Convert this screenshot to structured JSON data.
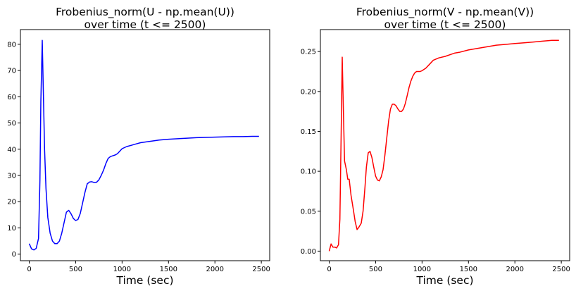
{
  "chart_data": [
    {
      "type": "line",
      "title_lines": [
        "Frobenius_norm(U - np.mean(U))",
        "over time (t <= 2500)"
      ],
      "xlabel": "Time (sec)",
      "ylabel": "",
      "xlim": [
        -95,
        2590
      ],
      "ylim": [
        -2.5,
        85.6
      ],
      "xticks": [
        0,
        500,
        1000,
        1500,
        2000,
        2500
      ],
      "yticks": [
        0,
        10,
        20,
        30,
        40,
        50,
        60,
        70,
        80
      ],
      "ytick_labels": [
        "0",
        "10",
        "20",
        "30",
        "40",
        "50",
        "60",
        "70",
        "80"
      ],
      "grid": false,
      "series": [
        {
          "color": "#0000ff",
          "x": [
            0,
            25,
            50,
            75,
            100,
            115,
            125,
            140,
            150,
            165,
            180,
            200,
            225,
            250,
            275,
            300,
            325,
            350,
            375,
            400,
            425,
            450,
            475,
            500,
            525,
            550,
            575,
            600,
            625,
            650,
            675,
            700,
            725,
            750,
            775,
            800,
            825,
            850,
            875,
            900,
            925,
            950,
            1000,
            1050,
            1100,
            1150,
            1200,
            1300,
            1400,
            1500,
            1600,
            1700,
            1800,
            1900,
            2000,
            2100,
            2200,
            2300,
            2400,
            2475
          ],
          "y": [
            4,
            2,
            1.6,
            2.2,
            6,
            28,
            58,
            81.5,
            65,
            40,
            25,
            14,
            8,
            5,
            4,
            4,
            5,
            8,
            12,
            16,
            16.7,
            15.4,
            13.6,
            12.8,
            13.2,
            15.5,
            19.5,
            23.5,
            26.8,
            27.5,
            27.6,
            27.3,
            27.4,
            28.3,
            30,
            32,
            34.5,
            36.5,
            37.2,
            37.5,
            37.8,
            38.3,
            40.2,
            41,
            41.5,
            42,
            42.5,
            43,
            43.5,
            43.8,
            44,
            44.2,
            44.4,
            44.5,
            44.6,
            44.7,
            44.8,
            44.8,
            44.9,
            44.9
          ]
        }
      ]
    },
    {
      "type": "line",
      "title_lines": [
        "Frobenius_norm(V - np.mean(V))",
        "over time (t <= 2500)"
      ],
      "xlabel": "Time (sec)",
      "ylabel": "",
      "xlim": [
        -95,
        2590
      ],
      "ylim": [
        -0.012,
        0.2775
      ],
      "xticks": [
        0,
        500,
        1000,
        1500,
        2000,
        2500
      ],
      "yticks": [
        0.0,
        0.05,
        0.1,
        0.15,
        0.2,
        0.25
      ],
      "ytick_labels": [
        "0.00",
        "0.05",
        "0.10",
        "0.15",
        "0.20",
        "0.25"
      ],
      "grid": false,
      "series": [
        {
          "color": "#ff0000",
          "x": [
            0,
            20,
            40,
            60,
            80,
            100,
            115,
            130,
            140,
            150,
            165,
            185,
            200,
            215,
            235,
            260,
            280,
            300,
            320,
            345,
            365,
            385,
            400,
            420,
            440,
            460,
            480,
            500,
            520,
            540,
            560,
            580,
            600,
            620,
            640,
            660,
            680,
            700,
            720,
            740,
            760,
            780,
            800,
            820,
            840,
            860,
            880,
            900,
            920,
            940,
            960,
            980,
            1000,
            1040,
            1080,
            1120,
            1180,
            1250,
            1300,
            1350,
            1400,
            1500,
            1600,
            1700,
            1800,
            1900,
            2000,
            2100,
            2200,
            2300,
            2400,
            2475
          ],
          "y": [
            0.0,
            0.009,
            0.005,
            0.005,
            0.004,
            0.008,
            0.04,
            0.16,
            0.243,
            0.19,
            0.113,
            0.102,
            0.09,
            0.09,
            0.07,
            0.052,
            0.037,
            0.027,
            0.03,
            0.035,
            0.05,
            0.08,
            0.105,
            0.123,
            0.125,
            0.117,
            0.105,
            0.094,
            0.089,
            0.088,
            0.093,
            0.102,
            0.12,
            0.142,
            0.163,
            0.178,
            0.184,
            0.184,
            0.182,
            0.178,
            0.175,
            0.175,
            0.178,
            0.185,
            0.195,
            0.205,
            0.213,
            0.219,
            0.223,
            0.225,
            0.225,
            0.225,
            0.226,
            0.229,
            0.234,
            0.239,
            0.242,
            0.244,
            0.246,
            0.248,
            0.249,
            0.252,
            0.254,
            0.256,
            0.258,
            0.259,
            0.26,
            0.261,
            0.262,
            0.263,
            0.264,
            0.264
          ]
        }
      ]
    }
  ]
}
